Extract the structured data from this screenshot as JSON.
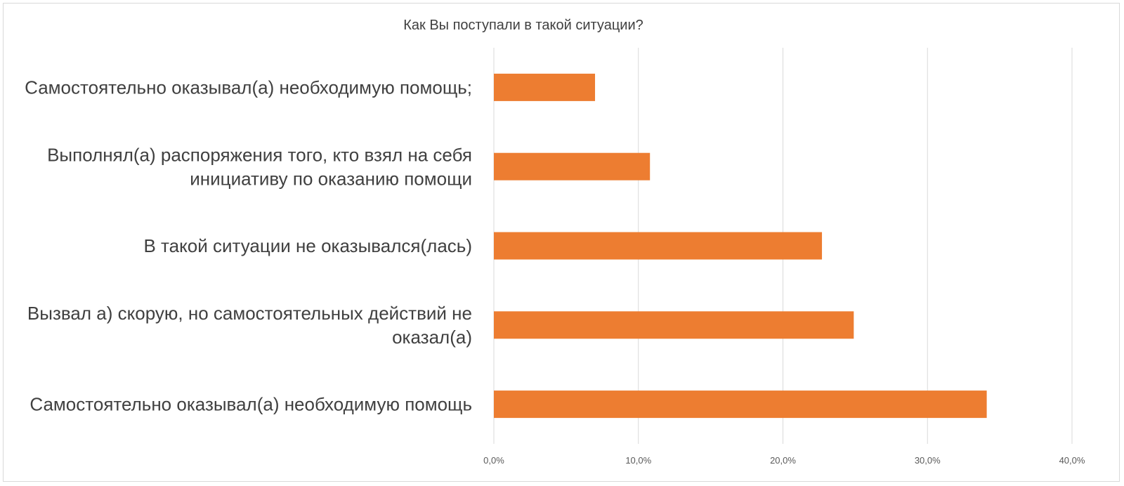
{
  "chart_data": {
    "type": "bar",
    "orientation": "horizontal",
    "title": "Как Вы поступали в такой ситуации?",
    "xlabel": "",
    "ylabel": "",
    "categories": [
      "Самостоятельно оказывал(а) необходимую помощь;",
      "Выполнял(а) распоряжения того, кто взял на себя инициативу по оказанию помощи",
      "В такой ситуации не оказывался(лась)",
      "Вызвал а) скорую, но самостоятельных действий не оказал(а)",
      "Самостоятельно оказывал(а) необходимую помощь"
    ],
    "category_lines": [
      [
        "Самостоятельно оказывал(а) необходимую помощь;"
      ],
      [
        "Выполнял(а) распоряжения того, кто взял на себя",
        "инициативу по оказанию помощи"
      ],
      [
        "В такой ситуации не оказывался(лась)"
      ],
      [
        "Вызвал а) скорую, но самостоятельных действий не",
        "оказал(а)"
      ],
      [
        "Самостоятельно оказывал(а) необходимую помощь"
      ]
    ],
    "values": [
      7.0,
      10.8,
      22.7,
      24.9,
      34.1
    ],
    "xlim": [
      0,
      40
    ],
    "ticks": [
      0,
      10,
      20,
      30,
      40
    ],
    "tick_labels": [
      "0,0%",
      "10,0%",
      "20,0%",
      "30,0%",
      "40,0%"
    ],
    "grid": true,
    "legend": "none",
    "bar_color": "#ED7D31",
    "grid_color": "#d9d9d9"
  }
}
